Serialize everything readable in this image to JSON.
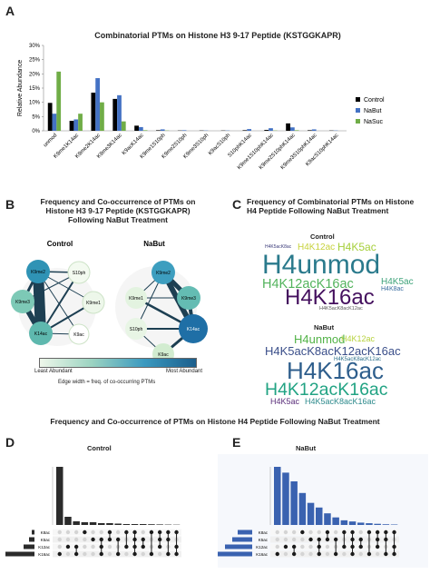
{
  "panels": {
    "A": {
      "letter": "A",
      "title": "Combinatorial PTMs on Histone H3 9-17 Peptide (KSTGGKAPR)",
      "ylabel": "Relative Abundance",
      "yticks": [
        "0%",
        "5%",
        "10%",
        "15%",
        "20%",
        "25%",
        "30%"
      ]
    },
    "B": {
      "letter": "B",
      "title_lines": [
        "Frequency and Co-occurrence of PTMs on",
        "Histone H3 9-17 Peptide (KSTGGKAPR)",
        "Following NaBut Treatment"
      ],
      "control_label": "Control",
      "nabut_label": "NaBut",
      "control_nodes": [
        "K9me2",
        "S10ph",
        "K9me3",
        "K9me1",
        "K14ac",
        "K9ac"
      ],
      "nabut_nodes": [
        "K9me2",
        "K9me1",
        "K9me3",
        "S10ph",
        "K14ac",
        "K9ac"
      ],
      "legend_least": "Least Abundant",
      "legend_most": "Most Abundant",
      "edge_note": "Edge width = freq. of co-occurring PTMs"
    },
    "C": {
      "letter": "C",
      "title_lines": [
        "Frequency of Combinatorial PTMs on Histone",
        "H4 Peptide Following NaBut Treatment"
      ],
      "control_label": "Control",
      "nabut_label": "NaBut",
      "control_words": [
        "H4K5acK8ac",
        "H4K12ac",
        "H4K5ac",
        "H4unmod",
        "H4K12acK16ac",
        "H4K5ac",
        "H4K8ac",
        "H4K16ac",
        "H4K5acK8acK12ac"
      ],
      "nabut_words": [
        "H4unmod",
        "H4K12ac",
        "H4K5acK8acK12acK16ac",
        "H4K5acK8acK12ac",
        "H4K16ac",
        "H4K12acK16ac",
        "H4K5ac",
        "H4K5acK8acK16ac"
      ]
    },
    "DE_title": "Frequency and Co-occurrence of PTMs on Histone H4 Peptide Following NaBut Treatment",
    "D": {
      "letter": "D",
      "label": "Control",
      "set_labels": [
        "K8ac",
        "K5ac",
        "K12ac",
        "K16ac"
      ]
    },
    "E": {
      "letter": "E",
      "label": "NaBut",
      "set_labels": [
        "K8ac",
        "K5ac",
        "K12ac",
        "K16ac"
      ]
    }
  },
  "colors": {
    "control": "#000000",
    "nabut": "#4472c4",
    "nasuc": "#70ad47",
    "network_light": "#e6f4e3",
    "network_dark": "#1b5e8c",
    "upset_d": "#2b2b2b",
    "upset_e": "#3a62b0"
  },
  "chart_data": [
    {
      "type": "bar",
      "title": "Combinatorial PTMs on Histone H3 9-17 Peptide (KSTGGKAPR)",
      "xlabel": "",
      "ylabel": "Relative Abundance",
      "ylim": [
        0,
        30
      ],
      "categories": [
        "unmod",
        "K9me1K14ac",
        "K9me2K14ac",
        "K9me3K14ac",
        "K9acK14ac",
        "K9me1S10ph",
        "K9me2S10ph",
        "K9me3S10ph",
        "K9acS10ph",
        "S10phK14ac",
        "K9me1S10phK14ac",
        "K9me2S10phK14ac",
        "K9me3S10phK14ac",
        "K9acS10phK14ac"
      ],
      "series": [
        {
          "name": "Control",
          "values": [
            9.8,
            3.5,
            13.4,
            11.2,
            1.8,
            0.2,
            0.1,
            0.1,
            0.1,
            0.2,
            0.3,
            2.6,
            0.2,
            0.1
          ]
        },
        {
          "name": "NaBut",
          "values": [
            6.0,
            4.0,
            18.5,
            12.5,
            1.3,
            0.5,
            0.2,
            0.1,
            0.1,
            0.6,
            0.9,
            1.2,
            0.5,
            0.1
          ]
        },
        {
          "name": "NaSuc",
          "values": [
            20.8,
            6.0,
            10.0,
            3.3,
            0.2,
            0.1,
            0.0,
            0.0,
            0.0,
            0.0,
            0.1,
            0.2,
            0.0,
            0.0
          ]
        }
      ],
      "legend": "right",
      "grid": false
    },
    {
      "type": "bar",
      "title": "",
      "xlabel": "",
      "ylabel": "",
      "categories": [
        "i1",
        "i2",
        "i3",
        "i4",
        "i5",
        "i6",
        "i7",
        "i8",
        "i9",
        "i10",
        "i11",
        "i12",
        "i13",
        "i14",
        "i15"
      ],
      "values": [
        64,
        9,
        4,
        3,
        3,
        2,
        2,
        1.5,
        1,
        1,
        1,
        0.8,
        0.6,
        0.4,
        0.3
      ]
    },
    {
      "type": "bar",
      "title": "",
      "xlabel": "",
      "ylabel": "",
      "categories": [
        "i1",
        "i2",
        "i3",
        "i4",
        "i5",
        "i6",
        "i7",
        "i8",
        "i9",
        "i10",
        "i11",
        "i12",
        "i13",
        "i14",
        "i15"
      ],
      "values": [
        100,
        90,
        75,
        55,
        38,
        30,
        20,
        13,
        8,
        6,
        4,
        3,
        2,
        1.2,
        0.8
      ]
    }
  ]
}
